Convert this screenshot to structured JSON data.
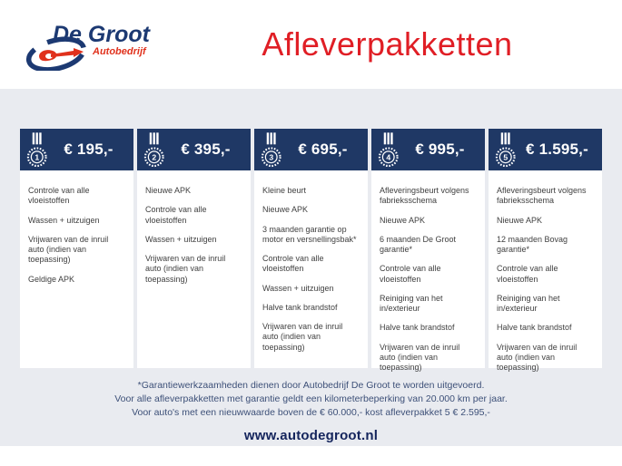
{
  "brand": {
    "name": "De Groot",
    "subtitle": "Autobedrijf"
  },
  "page_title": "Afleverpakketten",
  "packages": [
    {
      "number": "1",
      "price": "€ 195,-",
      "items": [
        "Controle van alle vloeistoffen",
        "Wassen + uitzuigen",
        "Vrijwaren van de inruil auto (indien van toepassing)",
        "Geldige APK"
      ]
    },
    {
      "number": "2",
      "price": "€ 395,-",
      "items": [
        "Nieuwe APK",
        "Controle van alle vloeistoffen",
        "Wassen + uitzuigen",
        "Vrijwaren van de inruil auto (indien van toepassing)"
      ]
    },
    {
      "number": "3",
      "price": "€ 695,-",
      "items": [
        "Kleine beurt",
        "Nieuwe APK",
        "3 maanden garantie op motor en versnellingsbak*",
        "Controle van alle vloeistoffen",
        "Wassen + uitzuigen",
        "Halve tank brandstof",
        "Vrijwaren van de inruil auto (indien van toepassing)"
      ]
    },
    {
      "number": "4",
      "price": "€ 995,-",
      "items": [
        "Afleveringsbeurt volgens fabrieksschema",
        "Nieuwe APK",
        "6 maanden De Groot garantie*",
        "Controle van alle vloeistoffen",
        "Reiniging van het in/exterieur",
        "Halve tank brandstof",
        "Vrijwaren van de inruil auto (indien van toepassing)"
      ]
    },
    {
      "number": "5",
      "price": "€ 1.595,-",
      "items": [
        "Afleveringsbeurt volgens fabrieksschema",
        "Nieuwe APK",
        "12 maanden Bovag garantie*",
        "Controle van alle vloeistoffen",
        "Reiniging van het in/exterieur",
        "Halve tank brandstof",
        "Vrijwaren van de inruil auto (indien van toepassing)"
      ]
    }
  ],
  "footnote_lines": [
    "*Garantiewerkzaamheden dienen door Autobedrijf De Groot te worden uitgevoerd.",
    "Voor alle afleverpakketten met garantie geldt een kilometerbeperking van 20.000 km per jaar.",
    "Voor auto's met een nieuwwaarde boven de € 60.000,- kost afleverpakket 5 € 2.595,-"
  ],
  "website": "www.autodegroot.nl",
  "icons": {
    "medal": "medal-icon",
    "logo_mark": "degroot-swoosh-logo"
  },
  "colors": {
    "navy_header_band": "#1f3865",
    "title_red": "#e01e25",
    "logo_navy": "#1c3972",
    "logo_red": "#e0311c",
    "page_background": "#e9ebf0",
    "card_background": "#ffffff",
    "body_text": "#3f3f3f",
    "footnote_text": "#3d5078",
    "website_text": "#14245c"
  }
}
